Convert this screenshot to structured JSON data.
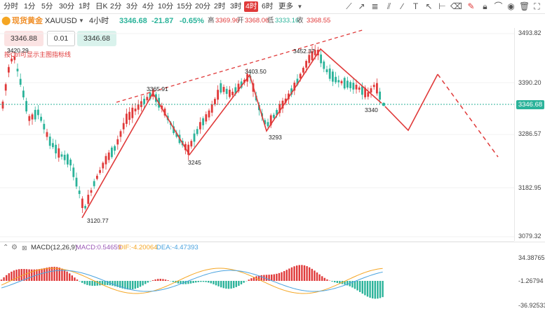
{
  "timeframes": [
    "分时",
    "1分",
    "5分",
    "30分",
    "1时",
    "日K",
    "2分",
    "3分",
    "4分",
    "10分",
    "15分",
    "20分",
    "2时",
    "3时",
    "4时",
    "6时",
    "更多"
  ],
  "active_timeframe": "4时",
  "info": {
    "symbol_name": "现货黄金",
    "symbol_code": "XAUUSD",
    "interval": "4小时",
    "price": "3346.68",
    "change": "-21.87",
    "change_pct": "-0.65%",
    "high_label": "高",
    "high": "3369.96",
    "open_label": "开",
    "open": "3368.06",
    "low_label": "低",
    "low": "3333.16",
    "close_label": "收",
    "close": "3368.55"
  },
  "order": {
    "bid": "3346.88",
    "qty": "0.01",
    "ask": "3346.68"
  },
  "hint_text": "按Ctrl可显示主图指标线",
  "yaxis_ticks": [
    "3493.82",
    "3390.20",
    "3286.57",
    "3182.95",
    "3079.32"
  ],
  "current_price_tag": "3346.68",
  "annotations": [
    "3420.29",
    "3365.91",
    "3403.50",
    "3452.37",
    "3340",
    "3293",
    "3245",
    "3120.77"
  ],
  "macd": {
    "name": "MACD(12,26,9)",
    "macd_label": "MACD:0.54659",
    "dif_label": "DIF:-4.20064",
    "dea_label": "DEA:-4.47393",
    "ticks": [
      "34.38765",
      "-1.26794",
      "-36.92533"
    ]
  },
  "colors": {
    "up": "#e03a3a",
    "down": "#2bb39a",
    "dif": "#f5a623",
    "dea": "#4aa3df",
    "macd": "#9b59b6"
  }
}
